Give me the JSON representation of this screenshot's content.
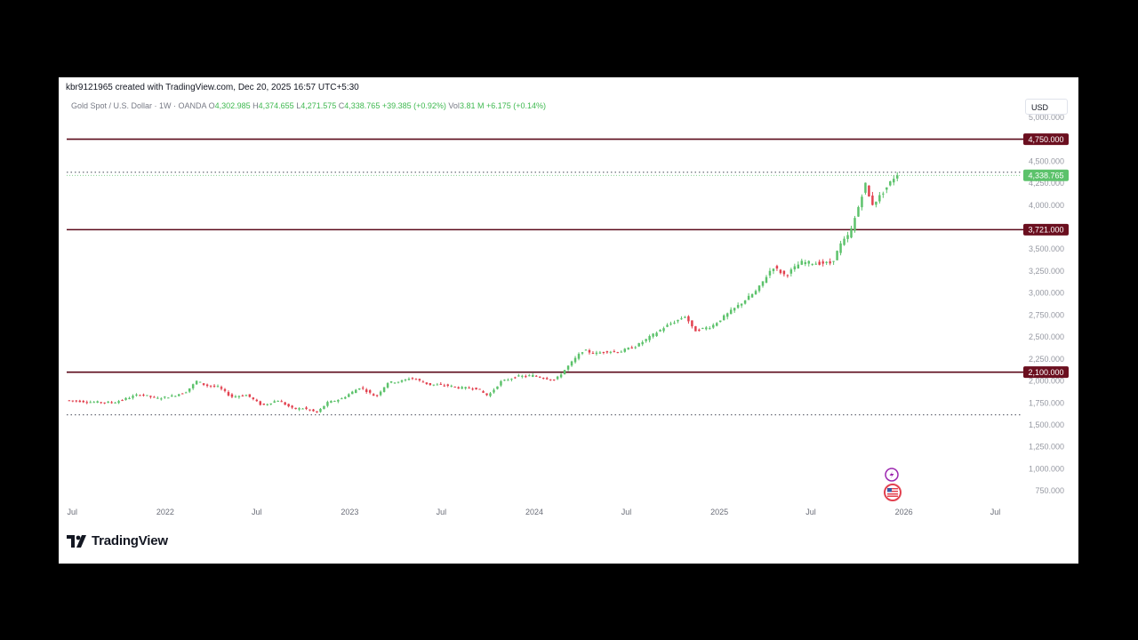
{
  "header": {
    "created_by": "kbr9121965 created with TradingView.com, Dec 20, 2025 16:57 UTC+5:30"
  },
  "legend": {
    "symbol": "Gold Spot / U.S. Dollar · 1W · OANDA",
    "open_label": "O",
    "open": "4,302.985",
    "high_label": "H",
    "high": "4,374.655",
    "low_label": "L",
    "low": "4,271.575",
    "close_label": "C",
    "close": "4,338.765",
    "change": "+39.385 (+0.92%)",
    "vol_label": "Vol",
    "vol": "3.81 M",
    "vol_change": "+6.175 (+0.14%)"
  },
  "currency": "USD",
  "brand": {
    "name": "TradingView"
  },
  "colors": {
    "up": "#5cc26b",
    "down": "#e2414f",
    "level_line": "#5b0a1a",
    "level_label_bg": "#6b0f1f",
    "last_price_bg": "#5cc26b",
    "axis_text": "#9598a1"
  },
  "icons": [
    "lightning-event-icon",
    "us-flag-event-icon"
  ],
  "chart_data": {
    "type": "candlestick",
    "interval": "1W",
    "ylim": [
      600,
      5100
    ],
    "xlim": [
      "2021-06-20",
      "2026-08-20"
    ],
    "y_ticks": [
      {
        "value": 750,
        "label": "750.000"
      },
      {
        "value": 1000,
        "label": "1,000.000"
      },
      {
        "value": 1250,
        "label": "1,250.000"
      },
      {
        "value": 1500,
        "label": "1,500.000"
      },
      {
        "value": 1750,
        "label": "1,750.000"
      },
      {
        "value": 2000,
        "label": "2,000.000"
      },
      {
        "value": 2250,
        "label": "2,250.000"
      },
      {
        "value": 2500,
        "label": "2,500.000"
      },
      {
        "value": 2750,
        "label": "2,750.000"
      },
      {
        "value": 3000,
        "label": "3,000.000"
      },
      {
        "value": 3250,
        "label": "3,250.000"
      },
      {
        "value": 3500,
        "label": "3,500.000"
      },
      {
        "value": 4000,
        "label": "4,000.000"
      },
      {
        "value": 4250,
        "label": "4,250.000"
      },
      {
        "value": 4500,
        "label": "4,500.000"
      },
      {
        "value": 5000,
        "label": "5,000.000"
      }
    ],
    "x_ticks": [
      {
        "date": "2021-07-01",
        "label": "Jul"
      },
      {
        "date": "2022-01-01",
        "label": "2022"
      },
      {
        "date": "2022-07-01",
        "label": "Jul"
      },
      {
        "date": "2023-01-01",
        "label": "2023"
      },
      {
        "date": "2023-07-01",
        "label": "Jul"
      },
      {
        "date": "2024-01-01",
        "label": "2024"
      },
      {
        "date": "2024-07-01",
        "label": "Jul"
      },
      {
        "date": "2025-01-01",
        "label": "2025"
      },
      {
        "date": "2025-07-01",
        "label": "Jul"
      },
      {
        "date": "2026-01-01",
        "label": "2026"
      },
      {
        "date": "2026-07-01",
        "label": "Jul"
      }
    ],
    "horizontal_levels": [
      {
        "value": 4750,
        "label": "4,750.000"
      },
      {
        "value": 3721,
        "label": "3,721.000"
      },
      {
        "value": 2100,
        "label": "2,100.000"
      }
    ],
    "dotted_levels": [
      4374.655,
      1615
    ],
    "last_price": {
      "value": 4338.765,
      "label": "4,338.765"
    },
    "price_path": [
      [
        "2021-06-25",
        1780
      ],
      [
        "2021-08-10",
        1760
      ],
      [
        "2021-09-25",
        1755
      ],
      [
        "2021-11-15",
        1850
      ],
      [
        "2021-12-20",
        1800
      ],
      [
        "2022-01-20",
        1830
      ],
      [
        "2022-02-15",
        1880
      ],
      [
        "2022-03-08",
        2000
      ],
      [
        "2022-03-25",
        1950
      ],
      [
        "2022-04-20",
        1930
      ],
      [
        "2022-05-15",
        1820
      ],
      [
        "2022-06-15",
        1840
      ],
      [
        "2022-07-15",
        1720
      ],
      [
        "2022-08-15",
        1780
      ],
      [
        "2022-09-15",
        1680
      ],
      [
        "2022-10-05",
        1690
      ],
      [
        "2022-11-01",
        1640
      ],
      [
        "2022-11-20",
        1750
      ],
      [
        "2022-12-20",
        1800
      ],
      [
        "2023-01-25",
        1930
      ],
      [
        "2023-02-25",
        1820
      ],
      [
        "2023-03-20",
        1980
      ],
      [
        "2023-04-20",
        2000
      ],
      [
        "2023-05-05",
        2040
      ],
      [
        "2023-06-10",
        1960
      ],
      [
        "2023-07-15",
        1950
      ],
      [
        "2023-08-10",
        1920
      ],
      [
        "2023-09-10",
        1920
      ],
      [
        "2023-10-05",
        1830
      ],
      [
        "2023-10-30",
        1990
      ],
      [
        "2023-12-01",
        2050
      ],
      [
        "2024-01-01",
        2060
      ],
      [
        "2024-02-15",
        2010
      ],
      [
        "2024-03-10",
        2160
      ],
      [
        "2024-04-10",
        2350
      ],
      [
        "2024-05-05",
        2310
      ],
      [
        "2024-05-25",
        2340
      ],
      [
        "2024-06-20",
        2330
      ],
      [
        "2024-07-25",
        2400
      ],
      [
        "2024-08-20",
        2500
      ],
      [
        "2024-09-20",
        2620
      ],
      [
        "2024-10-30",
        2740
      ],
      [
        "2024-11-15",
        2570
      ],
      [
        "2024-12-20",
        2620
      ],
      [
        "2025-01-20",
        2760
      ],
      [
        "2025-02-20",
        2900
      ],
      [
        "2025-03-20",
        3030
      ],
      [
        "2025-04-20",
        3300
      ],
      [
        "2025-05-15",
        3200
      ],
      [
        "2025-06-15",
        3350
      ],
      [
        "2025-07-15",
        3340
      ],
      [
        "2025-08-15",
        3340
      ],
      [
        "2025-09-01",
        3550
      ],
      [
        "2025-09-20",
        3680
      ],
      [
        "2025-10-05",
        3950
      ],
      [
        "2025-10-20",
        4250
      ],
      [
        "2025-11-01",
        4000
      ],
      [
        "2025-11-15",
        4080
      ],
      [
        "2025-12-01",
        4200
      ],
      [
        "2025-12-19",
        4338.765
      ]
    ]
  }
}
